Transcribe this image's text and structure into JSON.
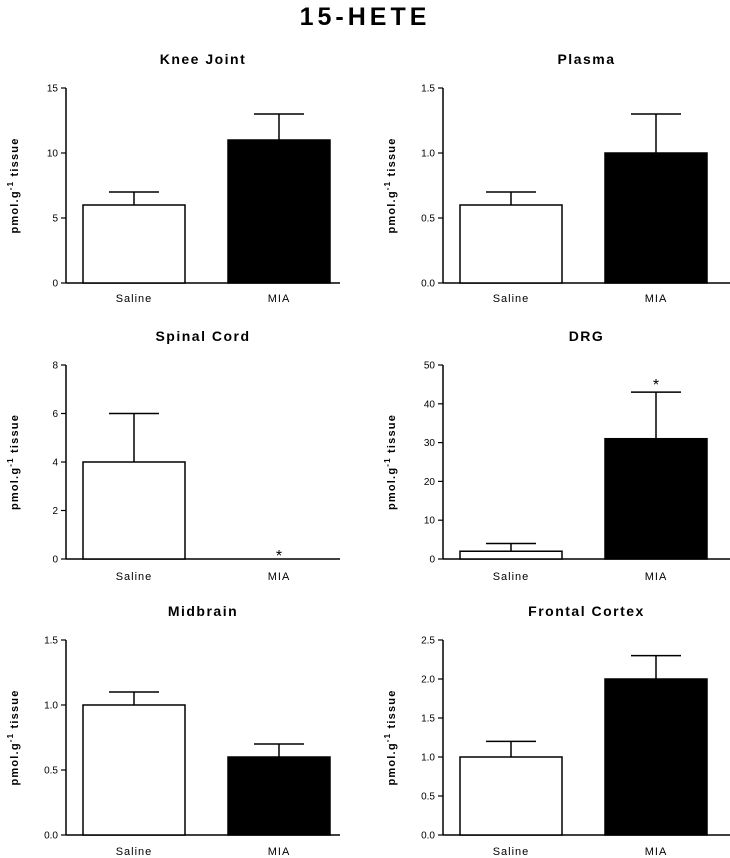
{
  "figure": {
    "title": "15-HETE"
  },
  "chart_data": [
    {
      "type": "bar",
      "title": "Knee Joint",
      "categories": [
        "Saline",
        "MIA"
      ],
      "values": [
        6,
        11
      ],
      "errors": [
        1,
        2
      ],
      "colors": [
        "#ffffff",
        "#000000"
      ],
      "ylim": [
        0,
        15
      ],
      "yticks": [
        "0",
        "5",
        "10",
        "15"
      ],
      "ylabel": "pmol.g-1 tissue",
      "ylabel_main": "pmol.g",
      "ylabel_sup": "-1",
      "ylabel_tail": " tissue",
      "significance": [
        "",
        ""
      ]
    },
    {
      "type": "bar",
      "title": "Plasma",
      "categories": [
        "Saline",
        "MIA"
      ],
      "values": [
        0.6,
        1.0
      ],
      "errors": [
        0.1,
        0.3
      ],
      "colors": [
        "#ffffff",
        "#000000"
      ],
      "ylim": [
        0,
        1.5
      ],
      "yticks": [
        "0.0",
        "0.5",
        "1.0",
        "1.5"
      ],
      "ylabel": "pmol.g-1 tissue",
      "ylabel_main": "pmol.g",
      "ylabel_sup": "-1",
      "ylabel_tail": " tissue",
      "significance": [
        "",
        ""
      ]
    },
    {
      "type": "bar",
      "title": "Spinal Cord",
      "categories": [
        "Saline",
        "MIA"
      ],
      "values": [
        4,
        0
      ],
      "errors": [
        2,
        0
      ],
      "colors": [
        "#ffffff",
        "#000000"
      ],
      "ylim": [
        0,
        8
      ],
      "yticks": [
        "0",
        "2",
        "4",
        "6",
        "8"
      ],
      "ylabel": "pmol.g-1 tissue",
      "ylabel_main": "pmol.g",
      "ylabel_sup": "-1",
      "ylabel_tail": " tissue",
      "significance": [
        "",
        "*"
      ]
    },
    {
      "type": "bar",
      "title": "DRG",
      "categories": [
        "Saline",
        "MIA"
      ],
      "values": [
        2,
        31
      ],
      "errors": [
        2,
        12
      ],
      "colors": [
        "#ffffff",
        "#000000"
      ],
      "ylim": [
        0,
        50
      ],
      "yticks": [
        "0",
        "10",
        "20",
        "30",
        "40",
        "50"
      ],
      "ylabel": "pmol.g-1 tissue",
      "ylabel_main": "pmol.g",
      "ylabel_sup": "-1",
      "ylabel_tail": " tissue",
      "significance": [
        "",
        "*"
      ]
    },
    {
      "type": "bar",
      "title": "Midbrain",
      "categories": [
        "Saline",
        "MIA"
      ],
      "values": [
        1.0,
        0.6
      ],
      "errors": [
        0.1,
        0.1
      ],
      "colors": [
        "#ffffff",
        "#000000"
      ],
      "ylim": [
        0,
        1.5
      ],
      "yticks": [
        "0.0",
        "0.5",
        "1.0",
        "1.5"
      ],
      "ylabel": "pmol.g-1 tissue",
      "ylabel_main": "pmol.g",
      "ylabel_sup": "-1",
      "ylabel_tail": " tissue",
      "significance": [
        "",
        ""
      ]
    },
    {
      "type": "bar",
      "title": "Frontal Cortex",
      "categories": [
        "Saline",
        "MIA"
      ],
      "values": [
        1.0,
        2.0
      ],
      "errors": [
        0.2,
        0.3
      ],
      "colors": [
        "#ffffff",
        "#000000"
      ],
      "ylim": [
        0,
        2.5
      ],
      "yticks": [
        "0.0",
        "0.5",
        "1.0",
        "1.5",
        "2.0",
        "2.5"
      ],
      "ylabel": "pmol.g-1 tissue",
      "ylabel_main": "pmol.g",
      "ylabel_sup": "-1",
      "ylabel_tail": " tissue",
      "significance": [
        "",
        ""
      ]
    }
  ]
}
